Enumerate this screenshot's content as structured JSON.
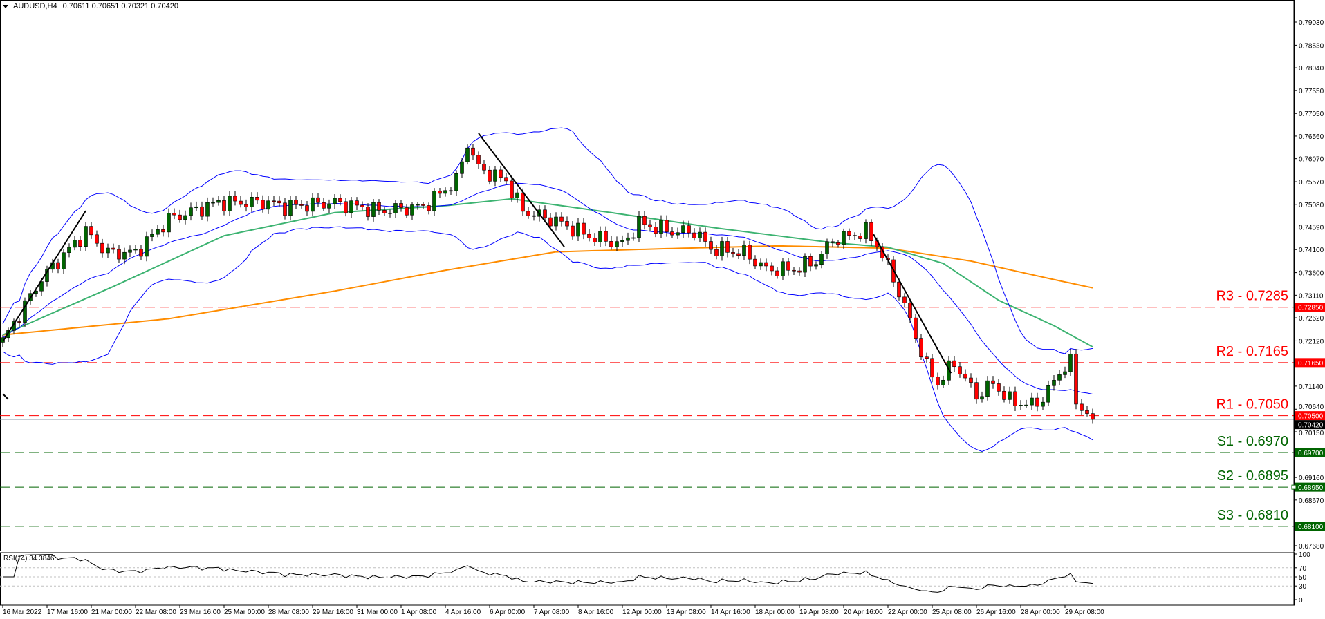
{
  "header": {
    "symbol": "AUDUSD,H4",
    "ohlc": "0.70611 0.70651 0.70321 0.70420"
  },
  "rsi": {
    "label": "RSI(14) 34.3846",
    "levels": [
      70,
      50,
      30
    ],
    "ticks": [
      "100",
      "70",
      "50",
      "30",
      "0"
    ]
  },
  "colors": {
    "bull": "#006400",
    "bear": "#ff0000",
    "resistance": "#ff0000",
    "support": "#006400",
    "bollinger": "#0000ff",
    "ma_mid": "#3cb371",
    "ma_slow": "#ff8c00",
    "trendline": "#000000"
  },
  "chart_data": {
    "type": "candlestick",
    "symbol": "AUDUSD",
    "timeframe": "H4",
    "ylim": [
      0.6768,
      0.7903
    ],
    "price_ticks": [
      "0.79030",
      "0.78530",
      "0.78040",
      "0.77550",
      "0.77050",
      "0.76560",
      "0.76070",
      "0.75570",
      "0.75080",
      "0.74590",
      "0.74100",
      "0.73600",
      "0.73110",
      "0.72620",
      "0.72120",
      "0.71140",
      "0.70640",
      "0.70150",
      "0.69160",
      "0.68670",
      "0.67680"
    ],
    "time_ticks": [
      "16 Mar 2022",
      "17 Mar 16:00",
      "21 Mar 00:00",
      "22 Mar 08:00",
      "23 Mar 16:00",
      "25 Mar 00:00",
      "28 Mar 08:00",
      "29 Mar 16:00",
      "31 Mar 00:00",
      "1 Apr 08:00",
      "4 Apr 16:00",
      "6 Apr 00:00",
      "7 Apr 08:00",
      "8 Apr 16:00",
      "12 Apr 00:00",
      "13 Apr 08:00",
      "14 Apr 16:00",
      "18 Apr 00:00",
      "19 Apr 08:00",
      "20 Apr 16:00",
      "22 Apr 00:00",
      "25 Apr 08:00",
      "26 Apr 16:00",
      "28 Apr 00:00",
      "29 Apr 08:00"
    ],
    "close_path": [
      [
        0,
        0.7211
      ],
      [
        7,
        0.7347
      ],
      [
        15,
        0.7449
      ],
      [
        19,
        0.7403
      ],
      [
        24,
        0.7403
      ],
      [
        30,
        0.7476
      ],
      [
        39,
        0.7512
      ],
      [
        48,
        0.7512
      ],
      [
        51,
        0.7503
      ],
      [
        60,
        0.7512
      ],
      [
        68,
        0.7494
      ],
      [
        76,
        0.7503
      ],
      [
        82,
        0.7559
      ],
      [
        84,
        0.7641
      ],
      [
        86,
        0.7586
      ],
      [
        91,
        0.7559
      ],
      [
        94,
        0.7494
      ],
      [
        100,
        0.7472
      ],
      [
        106,
        0.7439
      ],
      [
        112,
        0.7421
      ],
      [
        115,
        0.7467
      ],
      [
        121,
        0.7449
      ],
      [
        125,
        0.7449
      ],
      [
        128,
        0.7412
      ],
      [
        134,
        0.7403
      ],
      [
        138,
        0.7367
      ],
      [
        143,
        0.7367
      ],
      [
        147,
        0.7385
      ],
      [
        150,
        0.743
      ],
      [
        156,
        0.7449
      ],
      [
        158,
        0.7421
      ],
      [
        161,
        0.7347
      ],
      [
        164,
        0.7256
      ],
      [
        167,
        0.7156
      ],
      [
        169,
        0.712
      ],
      [
        172,
        0.7165
      ],
      [
        176,
        0.7093
      ],
      [
        179,
        0.712
      ],
      [
        182,
        0.7082
      ],
      [
        186,
        0.7073
      ],
      [
        188,
        0.7087
      ],
      [
        190,
        0.7123
      ],
      [
        191,
        0.7145
      ],
      [
        193,
        0.7165
      ],
      [
        194,
        0.7082
      ],
      [
        195,
        0.7065
      ],
      [
        196,
        0.706
      ],
      [
        197,
        0.7042
      ]
    ],
    "ma_mid": [
      [
        0,
        0.7225
      ],
      [
        20,
        0.733
      ],
      [
        40,
        0.744
      ],
      [
        60,
        0.749
      ],
      [
        80,
        0.7505
      ],
      [
        92,
        0.752
      ],
      [
        110,
        0.749
      ],
      [
        130,
        0.7455
      ],
      [
        150,
        0.7425
      ],
      [
        160,
        0.7415
      ],
      [
        170,
        0.738
      ],
      [
        180,
        0.73
      ],
      [
        190,
        0.7245
      ],
      [
        197,
        0.7199
      ]
    ],
    "ma_slow": [
      [
        0,
        0.7225
      ],
      [
        30,
        0.726
      ],
      [
        60,
        0.732
      ],
      [
        80,
        0.7365
      ],
      [
        100,
        0.7405
      ],
      [
        120,
        0.7412
      ],
      [
        140,
        0.7418
      ],
      [
        160,
        0.7413
      ],
      [
        175,
        0.7385
      ],
      [
        190,
        0.7345
      ],
      [
        197,
        0.7327
      ]
    ],
    "current_price": 0.7042,
    "levels": [
      {
        "label": "R3 - 0.7285",
        "price": 0.7285,
        "tag": "0.72850",
        "kind": "resistance"
      },
      {
        "label": "R2 - 0.7165",
        "price": 0.7165,
        "tag": "0.71650",
        "kind": "resistance"
      },
      {
        "label": "R1 - 0.7050",
        "price": 0.705,
        "tag": "0.70500",
        "kind": "resistance"
      },
      {
        "label": "S1 - 0.6970",
        "price": 0.697,
        "tag": "0.69700",
        "kind": "support"
      },
      {
        "label": "S2 - 0.6895",
        "price": 0.6895,
        "tag": "0.68950",
        "kind": "support"
      },
      {
        "label": "S3 - 0.6810",
        "price": 0.681,
        "tag": "0.68100",
        "kind": "support"
      }
    ],
    "current_tag": "0.70420",
    "trendlines": [
      [
        [
          0,
          0.7211
        ],
        [
          15,
          0.7494
        ]
      ],
      [
        [
          86,
          0.7662
        ],
        [
          101.5,
          0.7416
        ]
      ],
      [
        [
          157.4,
          0.7443
        ],
        [
          171.4,
          0.7142
        ]
      ]
    ]
  }
}
